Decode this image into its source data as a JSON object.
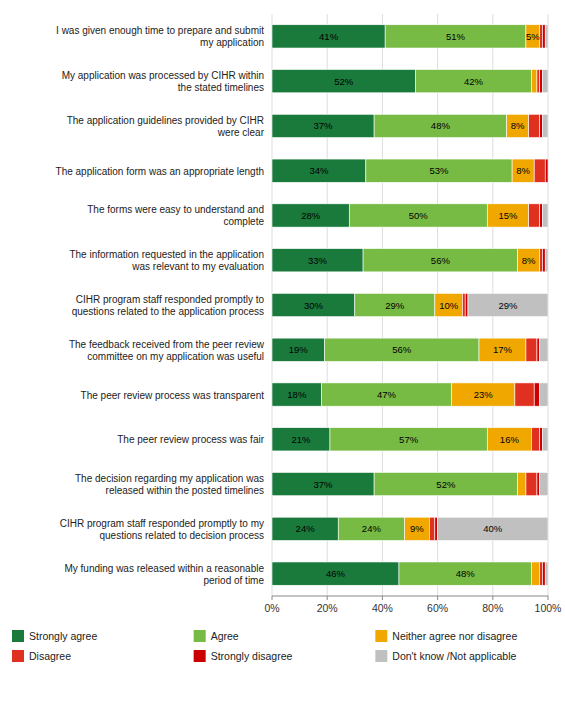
{
  "chart_data": {
    "type": "bar",
    "orientation": "horizontal",
    "stacked": true,
    "grid": true,
    "legend": "bottom",
    "data_labels": true,
    "categories": [
      "I was given enough time to prepare and submit\nmy application",
      "My application was processed by CIHR within\nthe stated timelines",
      "The application guidelines provided by CIHR\nwere clear",
      "The application form was an appropriate length",
      "The forms were easy to understand and\ncomplete",
      "The information requested in the application\nwas relevant to my evaluation",
      "CIHR program staff responded promptly to\nquestions related to the application process",
      "The feedback received from the peer review\ncommittee on my application was useful",
      "The peer review process was transparent",
      "The peer review process was fair",
      "The decision regarding my application was\nreleased within the posted timelines",
      "CIHR program staff responded promptly to my\nquestions related to decision process",
      "My funding was released within a reasonable\nperiod of time"
    ],
    "xlim": [
      0,
      100
    ],
    "xticks": [
      {
        "value": 0,
        "label": "0%"
      },
      {
        "value": 20,
        "label": "20%"
      },
      {
        "value": 40,
        "label": "40%"
      },
      {
        "value": 60,
        "label": "60%"
      },
      {
        "value": 80,
        "label": "80%"
      },
      {
        "value": 100,
        "label": "100%"
      }
    ],
    "series": [
      {
        "name": "Strongly agree",
        "color": "#1a7a3c",
        "values": [
          41,
          52,
          37,
          34,
          28,
          33,
          30,
          19,
          18,
          21,
          37,
          24,
          46
        ],
        "value_labels": [
          "41%",
          "52%",
          "37%",
          "34%",
          "28%",
          "33%",
          "30%",
          "19%",
          "18%",
          "21%",
          "37%",
          "24%",
          "46%"
        ]
      },
      {
        "name": "Agree",
        "color": "#77bb44",
        "values": [
          51,
          42,
          48,
          53,
          50,
          56,
          29,
          56,
          47,
          57,
          52,
          24,
          48
        ],
        "value_labels": [
          "51%",
          "42%",
          "48%",
          "53%",
          "50%",
          "56%",
          "29%",
          "56%",
          "47%",
          "57%",
          "52%",
          "24%",
          "48%"
        ]
      },
      {
        "name": "Neither agree nor disagree",
        "color": "#f0a800",
        "values": [
          5,
          2,
          8,
          8,
          15,
          8,
          10,
          17,
          23,
          16,
          3,
          9,
          3
        ],
        "value_labels": [
          "5%",
          null,
          "8%",
          "8%",
          "15%",
          "8%",
          "10%",
          "17%",
          "23%",
          "16%",
          null,
          "9%",
          null
        ]
      },
      {
        "name": "Disagree",
        "color": "#e03020",
        "data_labels": false,
        "values": [
          1,
          1,
          4,
          4,
          4,
          1,
          1,
          4,
          7,
          3,
          4,
          2,
          1
        ]
      },
      {
        "name": "Strongly disagree",
        "color": "#cc0000",
        "data_labels": false,
        "values": [
          1,
          1,
          1,
          1,
          1,
          1,
          1,
          1,
          2,
          1,
          1,
          1,
          1
        ]
      },
      {
        "name": "Don't know /Not applicable",
        "color": "#c0c0c0",
        "values": [
          1,
          2,
          2,
          0,
          2,
          1,
          29,
          3,
          3,
          2,
          3,
          40,
          1
        ],
        "value_labels": [
          null,
          null,
          null,
          null,
          null,
          null,
          "29%",
          null,
          null,
          null,
          null,
          "40%",
          null
        ]
      }
    ]
  }
}
